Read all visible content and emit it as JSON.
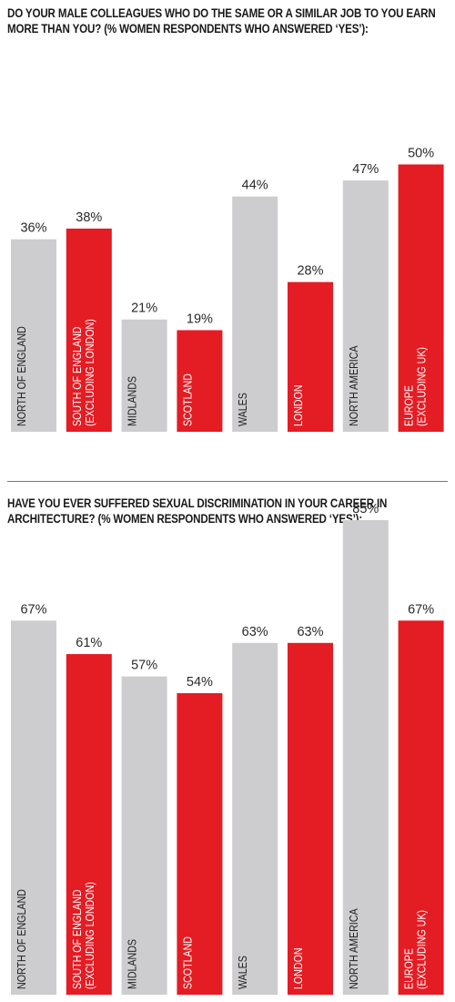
{
  "colors": {
    "grey": "#cdcdcf",
    "red": "#e41c24"
  },
  "chart_data": [
    {
      "type": "bar",
      "title": "DO YOUR MALE COLLEAGUES WHO DO THE SAME OR A SIMILAR JOB TO YOU EARN MORE THAN YOU? (% WOMEN RESPONDENTS WHO ANSWERED ‘YES’):",
      "ylim": [
        0,
        55
      ],
      "unit": "%",
      "categories": [
        [
          "NORTH OF ENGLAND"
        ],
        [
          "SOUTH OF ENGLAND",
          "(EXCLUDING LONDON)"
        ],
        [
          "MIDLANDS"
        ],
        [
          "SCOTLAND"
        ],
        [
          "WALES"
        ],
        [
          "LONDON"
        ],
        [
          "NORTH AMERICA"
        ],
        [
          "EUROPE",
          "(EXCLUDING UK)"
        ]
      ],
      "values": [
        36,
        38,
        21,
        19,
        44,
        28,
        47,
        50
      ],
      "value_labels": [
        "36%",
        "38%",
        "21%",
        "19%",
        "44%",
        "28%",
        "47%",
        "50%"
      ],
      "bar_colors": [
        "grey",
        "red",
        "grey",
        "red",
        "grey",
        "red",
        "grey",
        "red"
      ],
      "grid": false,
      "legend": "none"
    },
    {
      "type": "bar",
      "title": "HAVE YOU EVER SUFFERED SEXUAL DISCRIMINATION IN YOUR CAREER IN ARCHITECTURE? (% WOMEN RESPONDENTS WHO ANSWERED ‘YES’):",
      "ylim": [
        0,
        90
      ],
      "unit": "%",
      "categories": [
        [
          "NORTH OF ENGLAND"
        ],
        [
          "SOUTH OF ENGLAND",
          "(EXCLUDING LONDON)"
        ],
        [
          "MIDLANDS"
        ],
        [
          "SCOTLAND"
        ],
        [
          "WALES"
        ],
        [
          "LONDON"
        ],
        [
          "NORTH AMERICA"
        ],
        [
          "EUROPE",
          "(EXCLUDING UK)"
        ]
      ],
      "values": [
        67,
        61,
        57,
        54,
        63,
        63,
        85,
        67
      ],
      "value_labels": [
        "67%",
        "61%",
        "57%",
        "54%",
        "63%",
        "63%",
        "85%",
        "67%"
      ],
      "bar_colors": [
        "grey",
        "red",
        "grey",
        "red",
        "grey",
        "red",
        "grey",
        "red"
      ],
      "grid": false,
      "legend": "none"
    }
  ]
}
